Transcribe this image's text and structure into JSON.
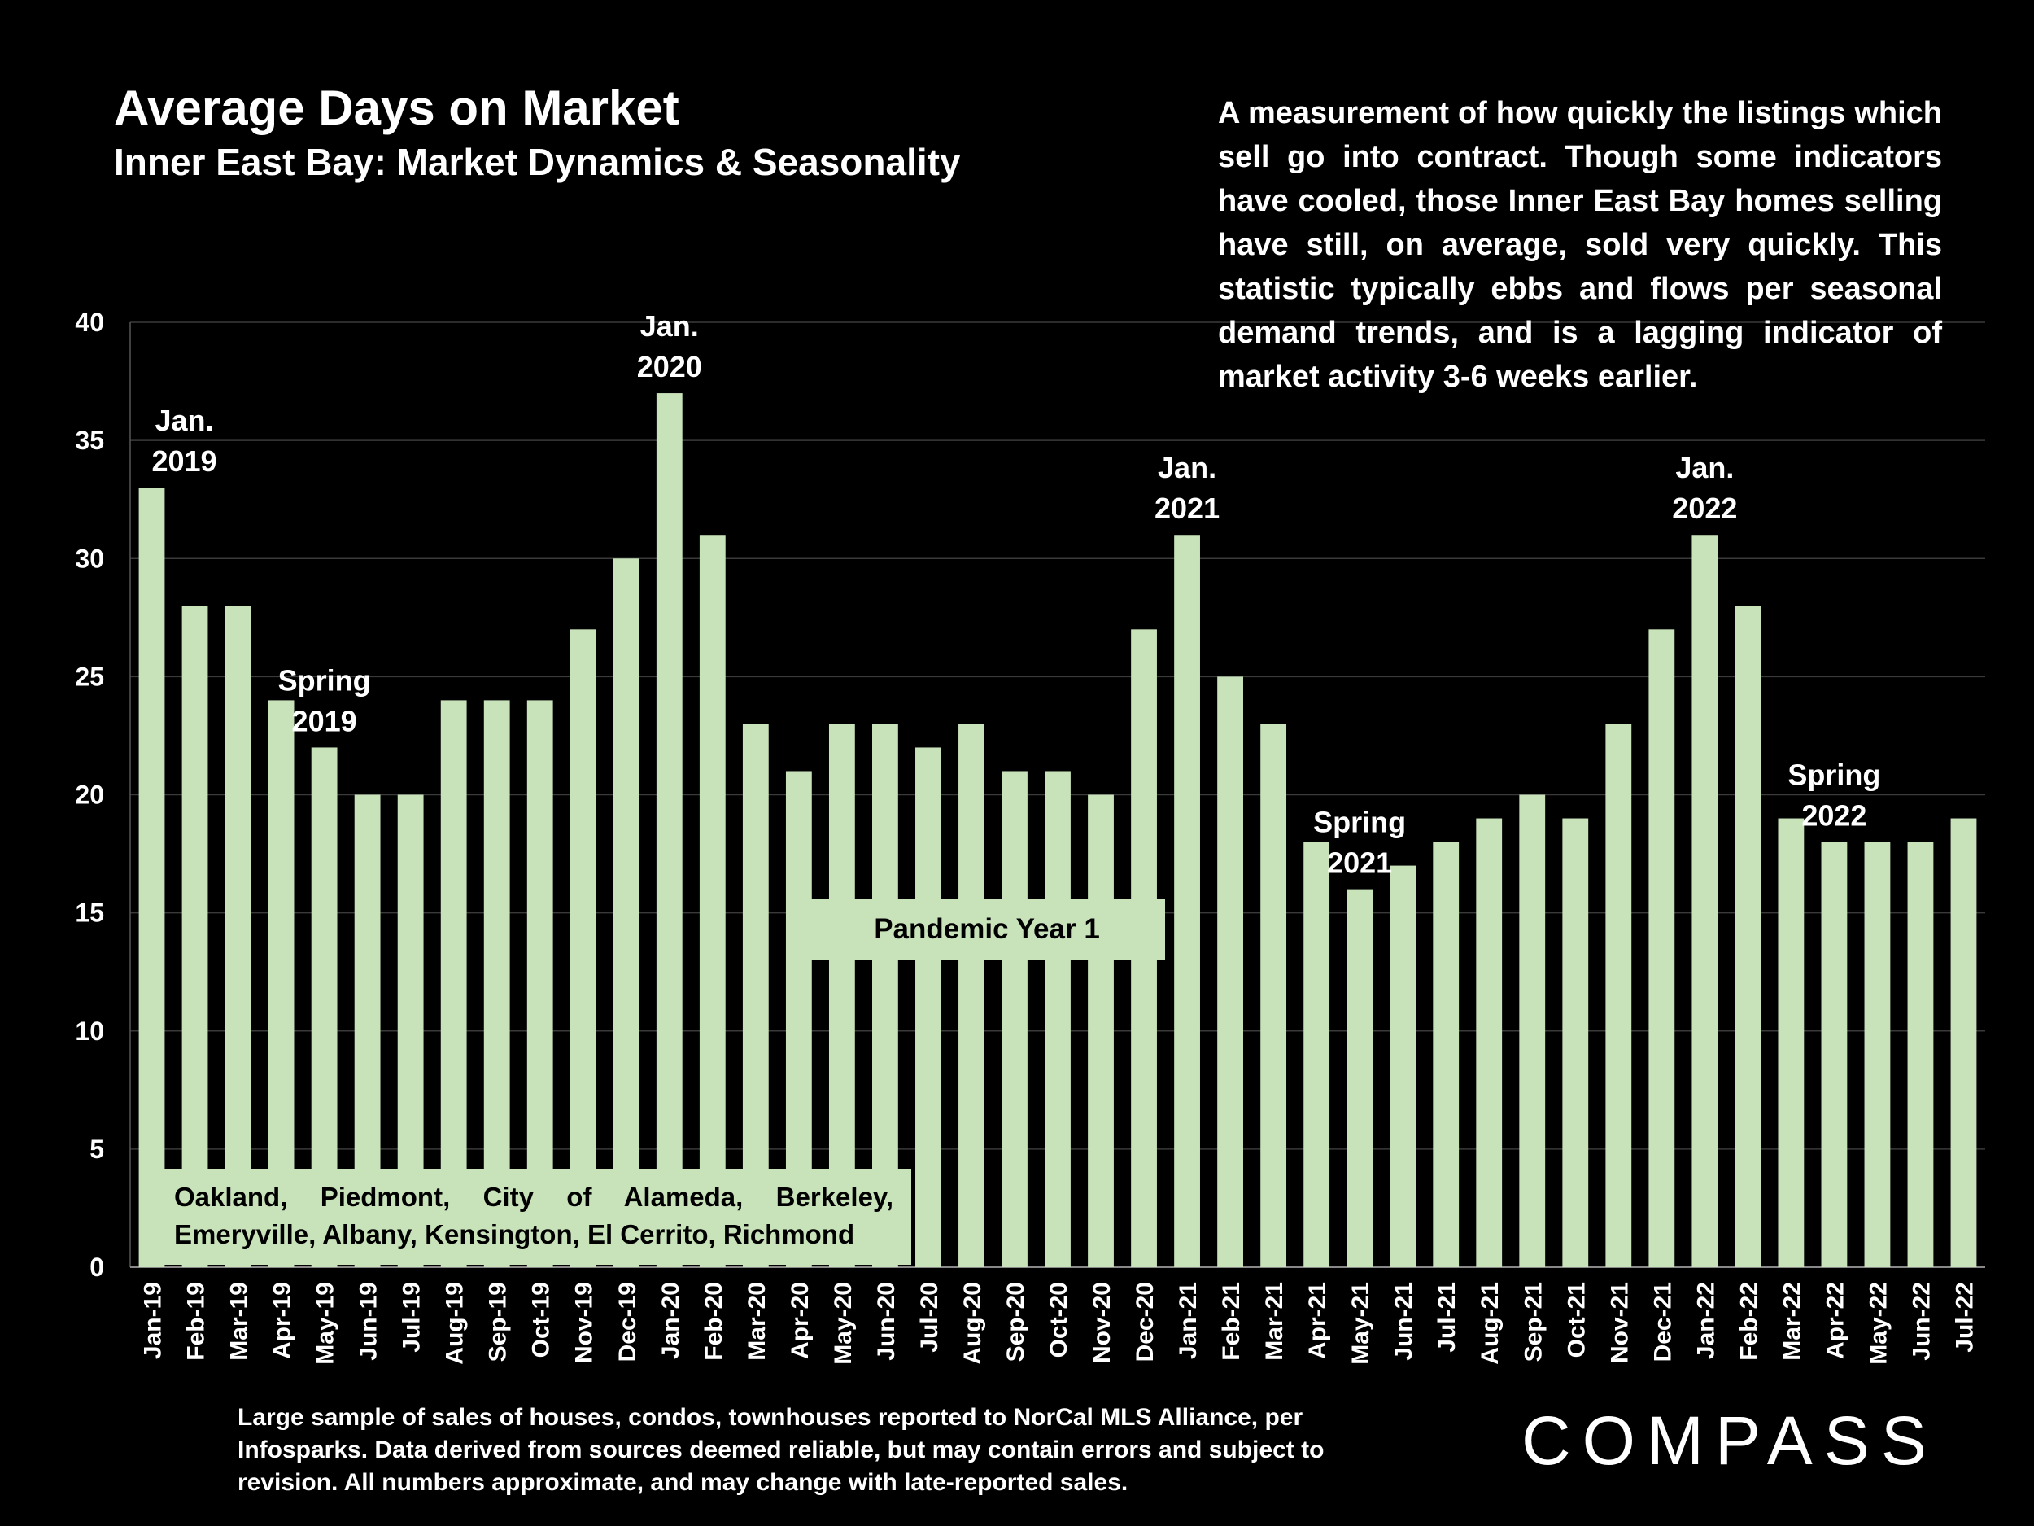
{
  "header": {
    "title": "Average Days on Market",
    "subtitle": "Inner East Bay: Market Dynamics & Seasonality"
  },
  "description": "A measurement of how quickly the listings which sell go into contract. Though some indicators have cooled, those Inner East Bay homes selling have still, on average, sold very quickly. This statistic typically ebbs and flows per seasonal demand trends, and is a lagging indicator of market activity 3-6 weeks earlier.",
  "footnote": "Large sample of sales of houses, condos, townhouses reported to NorCal MLS Alliance, per Infosparks. Data derived from sources deemed reliable, but may contain errors and subject to revision. All numbers approximate, and may change with late-reported sales.",
  "logo": "COMPASS",
  "boxes": {
    "cities": "Oakland, Piedmont, City of Alameda, Berkeley, Emeryville, Albany, Kensington, El Cerrito, Richmond",
    "pandemic": "Pandemic Year 1"
  },
  "colors": {
    "bar": "#c8e2ba",
    "background": "#000000",
    "grid": "#3a3a3a"
  },
  "chart_data": {
    "type": "bar",
    "categories": [
      "Jan-19",
      "Feb-19",
      "Mar-19",
      "Apr-19",
      "May-19",
      "Jun-19",
      "Jul-19",
      "Aug-19",
      "Sep-19",
      "Oct-19",
      "Nov-19",
      "Dec-19",
      "Jan-20",
      "Feb-20",
      "Mar-20",
      "Apr-20",
      "May-20",
      "Jun-20",
      "Jul-20",
      "Aug-20",
      "Sep-20",
      "Oct-20",
      "Nov-20",
      "Dec-20",
      "Jan-21",
      "Feb-21",
      "Mar-21",
      "Apr-21",
      "May-21",
      "Jun-21",
      "Jul-21",
      "Aug-21",
      "Sep-21",
      "Oct-21",
      "Nov-21",
      "Dec-21",
      "Jan-22",
      "Feb-22",
      "Mar-22",
      "Apr-22",
      "May-22",
      "Jun-22",
      "Jul-22"
    ],
    "values": [
      33,
      28,
      28,
      24,
      22,
      20,
      20,
      24,
      24,
      24,
      27,
      30,
      37,
      31,
      23,
      21,
      23,
      23,
      22,
      23,
      21,
      21,
      20,
      27,
      31,
      25,
      23,
      18,
      16,
      17,
      18,
      19,
      20,
      19,
      23,
      27,
      31,
      28,
      19,
      18,
      18,
      18,
      19
    ],
    "ylim": [
      0,
      40
    ],
    "yticks": [
      0,
      5,
      10,
      15,
      20,
      25,
      30,
      35,
      40
    ],
    "grid": true,
    "annotations": [
      {
        "index": 0,
        "lines": [
          "Jan.",
          "2019"
        ]
      },
      {
        "index": 4,
        "lines": [
          "Spring",
          "2019"
        ]
      },
      {
        "index": 12,
        "lines": [
          "Jan.",
          "2020"
        ]
      },
      {
        "index": 24,
        "lines": [
          "Jan.",
          "2021"
        ]
      },
      {
        "index": 28,
        "lines": [
          "Spring",
          "2021"
        ]
      },
      {
        "index": 36,
        "lines": [
          "Jan.",
          "2022"
        ]
      },
      {
        "index": 39,
        "lines": [
          "Spring",
          "2022"
        ]
      }
    ]
  }
}
